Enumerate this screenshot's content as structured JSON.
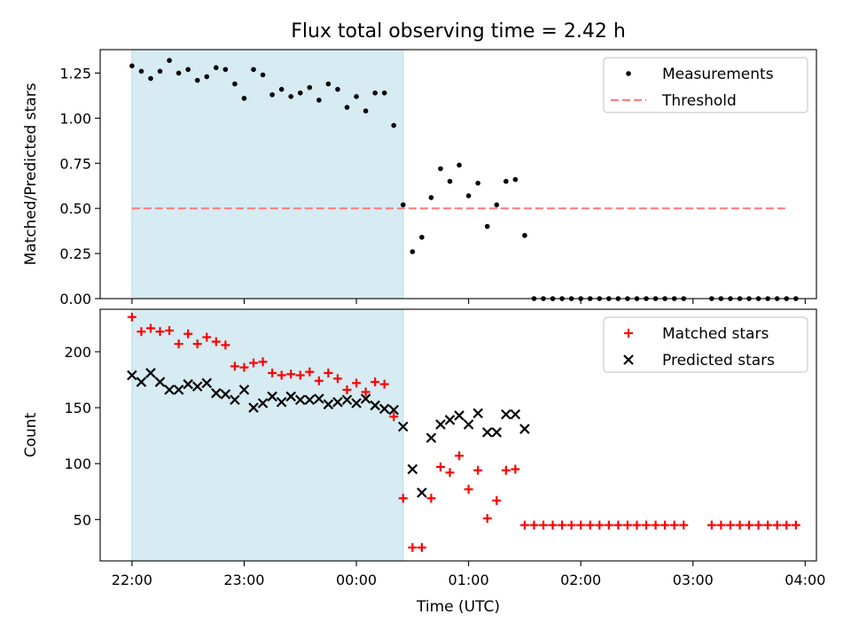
{
  "figure": {
    "title": "Flux total observing time = 2.42 h",
    "xlabel": "Time (UTC)"
  },
  "chart_data": [
    {
      "type": "scatter",
      "ylabel": "Matched/Predicted stars",
      "xlim": [
        "21:43",
        "04:06"
      ],
      "ylim": [
        0,
        1.38
      ],
      "yticks": [
        "0.00",
        "0.25",
        "0.50",
        "0.75",
        "1.00",
        "1.25"
      ],
      "ytick_values": [
        0,
        0.25,
        0.5,
        0.75,
        1.0,
        1.25
      ],
      "shaded_region": {
        "start": "22:00",
        "end": "00:25",
        "color": "#add8e6"
      },
      "legend": {
        "position": "top-right",
        "entries": [
          {
            "label": "Measurements",
            "marker": "dot",
            "color": "#000000"
          },
          {
            "label": "Threshold",
            "marker": "dashed-line",
            "color": "#ff7f7f"
          }
        ]
      },
      "threshold": {
        "value": 0.5,
        "start": "22:00",
        "end": "03:50",
        "color": "#ff7f7f"
      },
      "series": [
        {
          "name": "Measurements",
          "color": "#000000",
          "points": [
            [
              "22:00",
              1.29
            ],
            [
              "22:05",
              1.26
            ],
            [
              "22:10",
              1.22
            ],
            [
              "22:15",
              1.26
            ],
            [
              "22:20",
              1.32
            ],
            [
              "22:25",
              1.25
            ],
            [
              "22:30",
              1.27
            ],
            [
              "22:35",
              1.21
            ],
            [
              "22:40",
              1.23
            ],
            [
              "22:45",
              1.28
            ],
            [
              "22:50",
              1.27
            ],
            [
              "22:55",
              1.19
            ],
            [
              "23:00",
              1.11
            ],
            [
              "23:05",
              1.27
            ],
            [
              "23:10",
              1.24
            ],
            [
              "23:15",
              1.13
            ],
            [
              "23:20",
              1.16
            ],
            [
              "23:25",
              1.12
            ],
            [
              "23:30",
              1.14
            ],
            [
              "23:35",
              1.17
            ],
            [
              "23:40",
              1.1
            ],
            [
              "23:45",
              1.19
            ],
            [
              "23:50",
              1.16
            ],
            [
              "23:55",
              1.06
            ],
            [
              "00:00",
              1.12
            ],
            [
              "00:05",
              1.04
            ],
            [
              "00:10",
              1.14
            ],
            [
              "00:15",
              1.14
            ],
            [
              "00:20",
              0.96
            ],
            [
              "00:25",
              0.52
            ],
            [
              "00:30",
              0.26
            ],
            [
              "00:35",
              0.34
            ],
            [
              "00:40",
              0.56
            ],
            [
              "00:45",
              0.72
            ],
            [
              "00:50",
              0.65
            ],
            [
              "00:55",
              0.74
            ],
            [
              "01:00",
              0.57
            ],
            [
              "01:05",
              0.64
            ],
            [
              "01:10",
              0.4
            ],
            [
              "01:15",
              0.52
            ],
            [
              "01:20",
              0.65
            ],
            [
              "01:25",
              0.66
            ],
            [
              "01:30",
              0.35
            ],
            [
              "01:35",
              0.0
            ],
            [
              "01:40",
              0.0
            ],
            [
              "01:45",
              0.0
            ],
            [
              "01:50",
              0.0
            ],
            [
              "01:55",
              0.0
            ],
            [
              "02:00",
              0.0
            ],
            [
              "02:05",
              0.0
            ],
            [
              "02:10",
              0.0
            ],
            [
              "02:15",
              0.0
            ],
            [
              "02:20",
              0.0
            ],
            [
              "02:25",
              0.0
            ],
            [
              "02:30",
              0.0
            ],
            [
              "02:35",
              0.0
            ],
            [
              "02:40",
              0.0
            ],
            [
              "02:45",
              0.0
            ],
            [
              "02:50",
              0.0
            ],
            [
              "02:55",
              0.0
            ],
            [
              "03:10",
              0.0
            ],
            [
              "03:15",
              0.0
            ],
            [
              "03:20",
              0.0
            ],
            [
              "03:25",
              0.0
            ],
            [
              "03:30",
              0.0
            ],
            [
              "03:35",
              0.0
            ],
            [
              "03:40",
              0.0
            ],
            [
              "03:45",
              0.0
            ],
            [
              "03:50",
              0.0
            ],
            [
              "03:55",
              0.0
            ]
          ]
        }
      ]
    },
    {
      "type": "scatter",
      "ylabel": "Count",
      "xlim": [
        "21:43",
        "04:06"
      ],
      "ylim": [
        13,
        238
      ],
      "yticks": [
        "50",
        "100",
        "150",
        "200"
      ],
      "ytick_values": [
        50,
        100,
        150,
        200
      ],
      "xticks": [
        "22:00",
        "23:00",
        "00:00",
        "01:00",
        "02:00",
        "03:00",
        "04:00"
      ],
      "shaded_region": {
        "start": "22:00",
        "end": "00:25",
        "color": "#add8e6"
      },
      "legend": {
        "position": "top-right",
        "entries": [
          {
            "label": "Matched stars",
            "marker": "plus",
            "color": "#ff0000"
          },
          {
            "label": "Predicted stars",
            "marker": "x",
            "color": "#000000"
          }
        ]
      },
      "series": [
        {
          "name": "Matched stars",
          "marker": "plus",
          "color": "#ff0000",
          "points": [
            [
              "22:00",
              231
            ],
            [
              "22:05",
              218
            ],
            [
              "22:10",
              221
            ],
            [
              "22:15",
              218
            ],
            [
              "22:20",
              219
            ],
            [
              "22:25",
              207
            ],
            [
              "22:30",
              216
            ],
            [
              "22:35",
              207
            ],
            [
              "22:40",
              213
            ],
            [
              "22:45",
              209
            ],
            [
              "22:50",
              206
            ],
            [
              "22:55",
              187
            ],
            [
              "23:00",
              186
            ],
            [
              "23:05",
              190
            ],
            [
              "23:10",
              191
            ],
            [
              "23:15",
              181
            ],
            [
              "23:20",
              179
            ],
            [
              "23:25",
              180
            ],
            [
              "23:30",
              179
            ],
            [
              "23:35",
              182
            ],
            [
              "23:40",
              174
            ],
            [
              "23:45",
              181
            ],
            [
              "23:50",
              176
            ],
            [
              "23:55",
              166
            ],
            [
              "00:00",
              172
            ],
            [
              "00:05",
              164
            ],
            [
              "00:10",
              173
            ],
            [
              "00:15",
              171
            ],
            [
              "00:20",
              142
            ],
            [
              "00:25",
              69
            ],
            [
              "00:30",
              25
            ],
            [
              "00:35",
              25
            ],
            [
              "00:40",
              69
            ],
            [
              "00:45",
              97
            ],
            [
              "00:50",
              92
            ],
            [
              "00:55",
              107
            ],
            [
              "01:00",
              77
            ],
            [
              "01:05",
              94
            ],
            [
              "01:10",
              51
            ],
            [
              "01:15",
              67
            ],
            [
              "01:20",
              94
            ],
            [
              "01:25",
              95
            ],
            [
              "01:30",
              45
            ],
            [
              "01:35",
              45
            ],
            [
              "01:40",
              45
            ],
            [
              "01:45",
              45
            ],
            [
              "01:50",
              45
            ],
            [
              "01:55",
              45
            ],
            [
              "02:00",
              45
            ],
            [
              "02:05",
              45
            ],
            [
              "02:10",
              45
            ],
            [
              "02:15",
              45
            ],
            [
              "02:20",
              45
            ],
            [
              "02:25",
              45
            ],
            [
              "02:30",
              45
            ],
            [
              "02:35",
              45
            ],
            [
              "02:40",
              45
            ],
            [
              "02:45",
              45
            ],
            [
              "02:50",
              45
            ],
            [
              "02:55",
              45
            ],
            [
              "03:10",
              45
            ],
            [
              "03:15",
              45
            ],
            [
              "03:20",
              45
            ],
            [
              "03:25",
              45
            ],
            [
              "03:30",
              45
            ],
            [
              "03:35",
              45
            ],
            [
              "03:40",
              45
            ],
            [
              "03:45",
              45
            ],
            [
              "03:50",
              45
            ],
            [
              "03:55",
              45
            ]
          ]
        },
        {
          "name": "Predicted stars",
          "marker": "x",
          "color": "#000000",
          "points": [
            [
              "22:00",
              179
            ],
            [
              "22:05",
              173
            ],
            [
              "22:10",
              181
            ],
            [
              "22:15",
              173
            ],
            [
              "22:20",
              166
            ],
            [
              "22:25",
              166
            ],
            [
              "22:30",
              171
            ],
            [
              "22:35",
              169
            ],
            [
              "22:40",
              172
            ],
            [
              "22:45",
              163
            ],
            [
              "22:50",
              162
            ],
            [
              "22:55",
              157
            ],
            [
              "23:00",
              166
            ],
            [
              "23:05",
              150
            ],
            [
              "23:10",
              154
            ],
            [
              "23:15",
              160
            ],
            [
              "23:20",
              155
            ],
            [
              "23:25",
              160
            ],
            [
              "23:30",
              157
            ],
            [
              "23:35",
              157
            ],
            [
              "23:40",
              158
            ],
            [
              "23:45",
              153
            ],
            [
              "23:50",
              155
            ],
            [
              "23:55",
              157
            ],
            [
              "00:00",
              154
            ],
            [
              "00:05",
              158
            ],
            [
              "00:10",
              152
            ],
            [
              "00:15",
              149
            ],
            [
              "00:20",
              148
            ],
            [
              "00:25",
              133
            ],
            [
              "00:30",
              95
            ],
            [
              "00:35",
              74
            ],
            [
              "00:40",
              123
            ],
            [
              "00:45",
              135
            ],
            [
              "00:50",
              139
            ],
            [
              "00:55",
              143
            ],
            [
              "01:00",
              135
            ],
            [
              "01:05",
              145
            ],
            [
              "01:10",
              128
            ],
            [
              "01:15",
              128
            ],
            [
              "01:20",
              144
            ],
            [
              "01:25",
              144
            ],
            [
              "01:30",
              131
            ]
          ]
        }
      ]
    }
  ]
}
